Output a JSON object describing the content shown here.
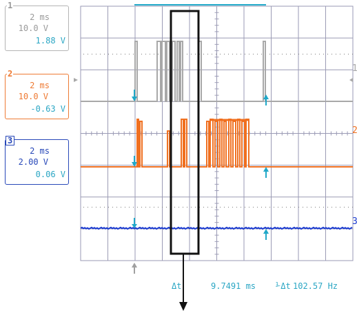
{
  "channels": [
    {
      "num": "1",
      "timebase": "2 ms",
      "volts": "10.0 V",
      "offset": "1.88 V"
    },
    {
      "num": "2",
      "timebase": "2 ms",
      "volts": "10.0 V",
      "offset": "-0.63 V"
    },
    {
      "num": "3",
      "timebase": "2 ms",
      "volts": "2.00 V",
      "offset": "0.06 V"
    }
  ],
  "right_markers": [
    "1",
    "2",
    "3"
  ],
  "measurement": {
    "delta_t_label": "Δt",
    "delta_t_value": "9.7491 ms",
    "freq_label": "⅟Δt",
    "freq_value": "102.57 Hz"
  },
  "colors": {
    "grid": "#9a9ab4",
    "ch1": "#a8a8a8",
    "ch2": "#f07020",
    "ch3": "#1a3ad0",
    "cursor": "#20a8c8",
    "highlight_box": "#111111"
  }
}
